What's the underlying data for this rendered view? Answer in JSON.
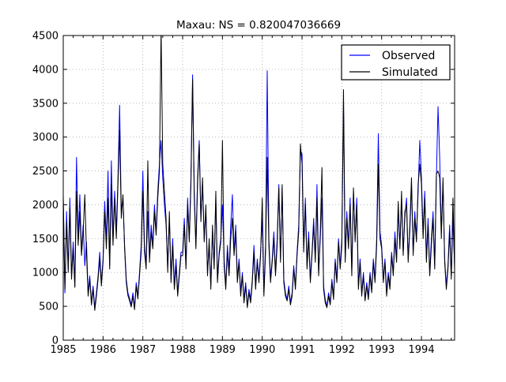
{
  "figure": {
    "background": "#ffffff"
  },
  "chart_data": {
    "type": "line",
    "title": "Maxau: NS = 0.820047036669",
    "xlabel": "",
    "ylabel": "",
    "xlim": [
      1985,
      1994.8333
    ],
    "ylim": [
      0,
      4500
    ],
    "x_ticks": [
      1985,
      1986,
      1987,
      1988,
      1989,
      1990,
      1991,
      1992,
      1993,
      1994
    ],
    "y_ticks": [
      0,
      500,
      1000,
      1500,
      2000,
      2500,
      3000,
      3500,
      4000,
      4500
    ],
    "x_minor_step": 0.25,
    "grid": "dotted",
    "grid_color": "#b0b0b0",
    "legend": {
      "position": "upper right",
      "entries": [
        {
          "label": "Observed",
          "color": "#0000ff"
        },
        {
          "label": "Simulated",
          "color": "#000000"
        }
      ]
    },
    "x_start": 1985.0,
    "x_step": 0.0416667,
    "series": [
      {
        "name": "Observed",
        "color": "#0000ff",
        "values": [
          2150,
          700,
          1900,
          1050,
          2100,
          950,
          1450,
          800,
          2700,
          1500,
          2150,
          1300,
          1700,
          1100,
          1450,
          700,
          950,
          560,
          800,
          480,
          700,
          950,
          1300,
          850,
          1200,
          2050,
          1450,
          2500,
          1100,
          2650,
          1500,
          2200,
          1600,
          2400,
          3470,
          1900,
          2100,
          1400,
          900,
          700,
          620,
          520,
          700,
          480,
          850,
          650,
          1000,
          1400,
          2500,
          1400,
          1100,
          1900,
          1200,
          1700,
          1400,
          2000,
          1600,
          2200,
          2600,
          2950,
          2400,
          2000,
          1700,
          1100,
          1800,
          900,
          1500,
          800,
          1200,
          700,
          1000,
          1300,
          1300,
          1800,
          1100,
          2100,
          1500,
          2400,
          3920,
          2200,
          1400,
          2400,
          2950,
          1800,
          2300,
          1500,
          1900,
          1000,
          1400,
          800,
          1600,
          1100,
          2100,
          900,
          1300,
          1500,
          2000,
          1200,
          800,
          1400,
          1000,
          1700,
          2150,
          1300,
          1700,
          900,
          1200,
          700,
          1000,
          600,
          850,
          500,
          750,
          600,
          900,
          1400,
          800,
          1200,
          900,
          1300,
          1800,
          700,
          1400,
          3980,
          1500,
          900,
          1200,
          1600,
          1000,
          1500,
          2300,
          1200,
          2250,
          900,
          700,
          600,
          800,
          550,
          700,
          1100,
          800,
          1300,
          1700,
          2800,
          2750,
          1400,
          2100,
          1100,
          1600,
          900,
          1300,
          1800,
          1200,
          2300,
          1000,
          1500,
          2100,
          800,
          600,
          500,
          700,
          550,
          900,
          650,
          1200,
          900,
          1500,
          1100,
          1500,
          3480,
          1200,
          1900,
          1400,
          2100,
          1000,
          2200,
          1500,
          2100,
          800,
          1200,
          700,
          1000,
          600,
          850,
          650,
          1000,
          750,
          1200,
          900,
          1500,
          3050,
          1600,
          1400,
          900,
          1200,
          700,
          1000,
          800,
          1300,
          1000,
          1600,
          1200,
          1900,
          1400,
          2050,
          1300,
          1800,
          2100,
          1200,
          1600,
          2300,
          1300,
          1900,
          1500,
          2200,
          2950,
          2400,
          1600,
          2200,
          1200,
          1800,
          1000,
          1500,
          1900,
          1100,
          2400,
          3450,
          2700,
          1600,
          2300,
          1200,
          800,
          1100,
          1700,
          950,
          1800,
          1100
        ]
      },
      {
        "name": "Simulated",
        "color": "#000000",
        "values": [
          2100,
          750,
          1750,
          1000,
          1950,
          900,
          1350,
          780,
          2200,
          1400,
          1900,
          1250,
          1600,
          2150,
          1300,
          650,
          900,
          520,
          750,
          440,
          650,
          900,
          1200,
          800,
          1150,
          1900,
          1350,
          2100,
          1050,
          2300,
          1400,
          2100,
          1500,
          2300,
          3100,
          1800,
          2150,
          1350,
          850,
          660,
          580,
          490,
          650,
          450,
          800,
          610,
          950,
          1300,
          2200,
          1300,
          1050,
          2650,
          1150,
          1600,
          1350,
          1900,
          1550,
          2100,
          2500,
          4600,
          2600,
          2200,
          1800,
          1000,
          1900,
          850,
          1400,
          750,
          1100,
          650,
          950,
          1250,
          1250,
          1700,
          1050,
          2000,
          1450,
          2300,
          3850,
          2100,
          1350,
          2300,
          2900,
          1750,
          2400,
          1450,
          2000,
          950,
          1500,
          750,
          1700,
          1050,
          2200,
          850,
          1250,
          1450,
          2950,
          1100,
          750,
          1300,
          950,
          1500,
          1800,
          1250,
          1600,
          850,
          1150,
          650,
          950,
          550,
          800,
          480,
          700,
          550,
          850,
          1300,
          750,
          1150,
          850,
          1250,
          2100,
          650,
          1300,
          2700,
          1400,
          850,
          1150,
          1500,
          950,
          1400,
          2250,
          1150,
          2300,
          850,
          650,
          580,
          750,
          520,
          650,
          1050,
          750,
          1250,
          1600,
          2900,
          2600,
          1300,
          2000,
          1050,
          1500,
          850,
          1250,
          1700,
          1150,
          2100,
          950,
          1600,
          2550,
          750,
          550,
          480,
          650,
          520,
          850,
          600,
          1150,
          850,
          1450,
          1050,
          1400,
          3700,
          1150,
          1800,
          1350,
          2000,
          950,
          2250,
          1450,
          2000,
          750,
          1150,
          650,
          950,
          580,
          800,
          600,
          950,
          700,
          1150,
          850,
          1400,
          2600,
          1500,
          1350,
          850,
          1150,
          650,
          950,
          750,
          1250,
          950,
          1500,
          1150,
          2050,
          1350,
          2200,
          1250,
          1900,
          2000,
          1150,
          1700,
          2400,
          1250,
          1800,
          1450,
          2300,
          2600,
          2300,
          1500,
          2100,
          1150,
          1700,
          950,
          1400,
          1800,
          1050,
          2450,
          2500,
          2400,
          1500,
          2400,
          1150,
          750,
          1050,
          1600,
          900,
          2100,
          1000
        ]
      }
    ]
  }
}
